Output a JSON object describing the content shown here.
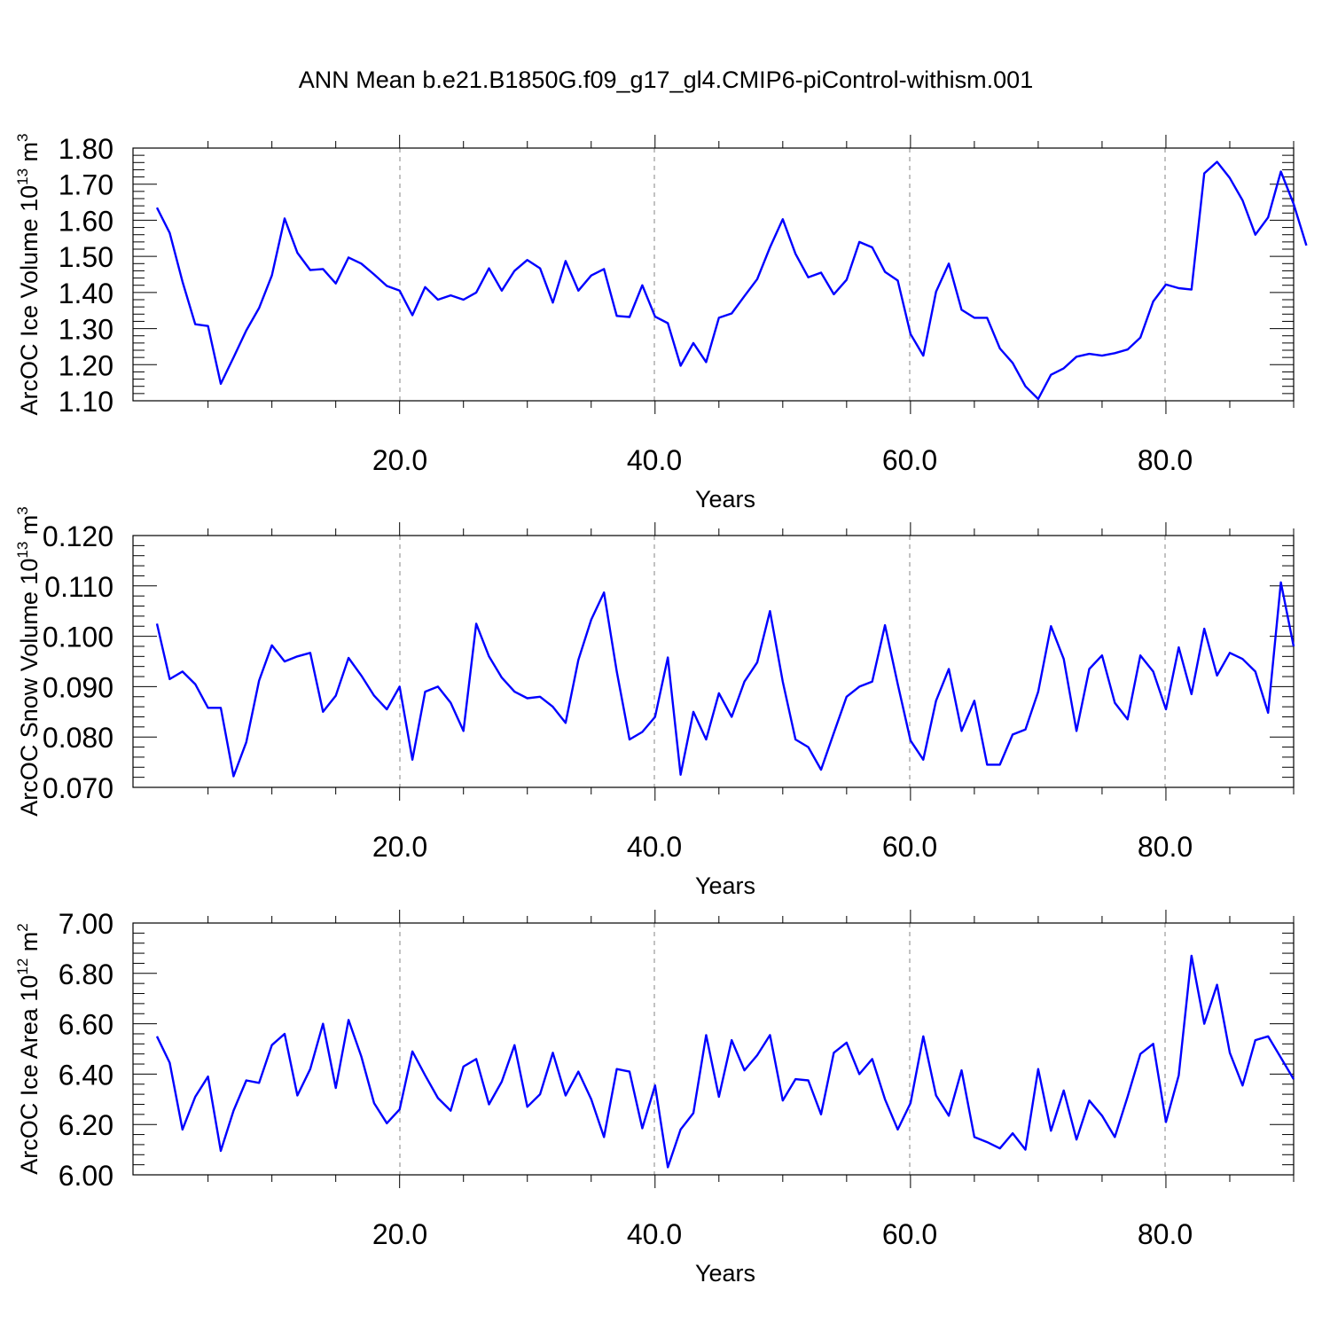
{
  "title": "ANN Mean b.e21.B1850G.f09_g17_gl4.CMIP6-piControl-withism.001",
  "line_color": "#0000ff",
  "grid_color": "#999999",
  "chart_data": [
    {
      "type": "line",
      "ylabel": "ArcOC Ice Volume 10",
      "ylabel_exp": "13",
      "ylabel_unit": " m",
      "ylabel_unit_exp": "3",
      "xlabel": "Years",
      "xlim": [
        1,
        90
      ],
      "ylim": [
        1.1,
        1.8
      ],
      "yticks": [
        "1.10",
        "1.20",
        "1.30",
        "1.40",
        "1.50",
        "1.60",
        "1.70",
        "1.80"
      ],
      "xticks": [
        "20.0",
        "40.0",
        "60.0",
        "80.0"
      ],
      "grid": "x-major dashed",
      "series": [
        {
          "values": [
            1.635,
            1.565,
            1.43,
            1.312,
            1.307,
            1.147,
            1.22,
            1.295,
            1.357,
            1.447,
            1.605,
            1.51,
            1.462,
            1.465,
            1.425,
            1.497,
            1.48,
            1.45,
            1.418,
            1.405,
            1.337,
            1.415,
            1.38,
            1.392,
            1.38,
            1.4,
            1.467,
            1.405,
            1.46,
            1.49,
            1.467,
            1.372,
            1.487,
            1.405,
            1.447,
            1.465,
            1.335,
            1.332,
            1.42,
            1.333,
            1.315,
            1.197,
            1.26,
            1.207,
            1.33,
            1.342,
            1.39,
            1.437,
            1.525,
            1.603,
            1.507,
            1.442,
            1.455,
            1.395,
            1.435,
            1.54,
            1.525,
            1.457,
            1.433,
            1.285,
            1.225,
            1.402,
            1.48,
            1.352,
            1.33,
            1.33,
            1.245,
            1.205,
            1.14,
            1.105,
            1.172,
            1.19,
            1.222,
            1.23,
            1.225,
            1.232,
            1.242,
            1.275,
            1.375,
            1.422,
            1.412,
            1.408,
            1.73,
            1.762,
            1.717,
            1.655,
            1.56,
            1.608,
            1.735,
            1.645,
            1.53
          ]
        }
      ]
    },
    {
      "type": "line",
      "ylabel": "ArcOC Snow Volume 10",
      "ylabel_exp": "13",
      "ylabel_unit": " m",
      "ylabel_unit_exp": "3",
      "xlabel": "Years",
      "xlim": [
        1,
        90
      ],
      "ylim": [
        0.07,
        0.12
      ],
      "yticks": [
        "0.070",
        "0.080",
        "0.090",
        "0.100",
        "0.110",
        "0.120"
      ],
      "xticks": [
        "20.0",
        "40.0",
        "60.0",
        "80.0"
      ],
      "grid": "x-major dashed",
      "series": [
        {
          "values": [
            0.1025,
            0.0915,
            0.093,
            0.0905,
            0.0858,
            0.0858,
            0.0722,
            0.079,
            0.0912,
            0.0982,
            0.095,
            0.096,
            0.0967,
            0.085,
            0.0882,
            0.0957,
            0.0922,
            0.0882,
            0.0855,
            0.09,
            0.0755,
            0.089,
            0.09,
            0.0868,
            0.0812,
            0.1025,
            0.096,
            0.0918,
            0.089,
            0.0877,
            0.088,
            0.086,
            0.0828,
            0.0953,
            0.1033,
            0.1087,
            0.093,
            0.0795,
            0.081,
            0.084,
            0.0958,
            0.0725,
            0.085,
            0.0795,
            0.0887,
            0.084,
            0.091,
            0.0948,
            0.105,
            0.091,
            0.0795,
            0.078,
            0.0735,
            0.0808,
            0.088,
            0.09,
            0.091,
            0.1022,
            0.0905,
            0.0793,
            0.0755,
            0.0872,
            0.0935,
            0.0812,
            0.0872,
            0.0745,
            0.0745,
            0.0805,
            0.0815,
            0.089,
            0.102,
            0.0955,
            0.0812,
            0.0935,
            0.0962,
            0.0868,
            0.0835,
            0.0962,
            0.093,
            0.0855,
            0.0978,
            0.0885,
            0.1015,
            0.0922,
            0.0967,
            0.0955,
            0.093,
            0.0848,
            0.1107,
            0.098
          ]
        }
      ]
    },
    {
      "type": "line",
      "ylabel": "ArcOC Ice Area 10",
      "ylabel_exp": "12",
      "ylabel_unit": " m",
      "ylabel_unit_exp": "2",
      "xlabel": "Years",
      "xlim": [
        1,
        90
      ],
      "ylim": [
        6.0,
        7.0
      ],
      "yticks": [
        "6.00",
        "6.20",
        "6.40",
        "6.60",
        "6.80",
        "7.00"
      ],
      "xticks": [
        "20.0",
        "40.0",
        "60.0",
        "80.0"
      ],
      "grid": "x-major dashed",
      "series": [
        {
          "values": [
            6.55,
            6.445,
            6.18,
            6.31,
            6.39,
            6.095,
            6.255,
            6.375,
            6.365,
            6.515,
            6.56,
            6.315,
            6.42,
            6.6,
            6.345,
            6.615,
            6.47,
            6.285,
            6.205,
            6.26,
            6.49,
            6.395,
            6.305,
            6.255,
            6.43,
            6.46,
            6.28,
            6.37,
            6.515,
            6.27,
            6.32,
            6.485,
            6.315,
            6.41,
            6.3,
            6.15,
            6.42,
            6.41,
            6.185,
            6.355,
            6.03,
            6.18,
            6.245,
            6.555,
            6.31,
            6.535,
            6.415,
            6.475,
            6.555,
            6.295,
            6.38,
            6.375,
            6.24,
            6.485,
            6.525,
            6.4,
            6.46,
            6.3,
            6.18,
            6.285,
            6.55,
            6.315,
            6.235,
            6.415,
            6.15,
            6.13,
            6.105,
            6.165,
            6.1,
            6.42,
            6.175,
            6.335,
            6.14,
            6.295,
            6.235,
            6.15,
            6.31,
            6.48,
            6.52,
            6.21,
            6.395,
            6.87,
            6.6,
            6.755,
            6.485,
            6.355,
            6.535,
            6.55,
            6.465,
            6.38
          ]
        }
      ]
    }
  ]
}
